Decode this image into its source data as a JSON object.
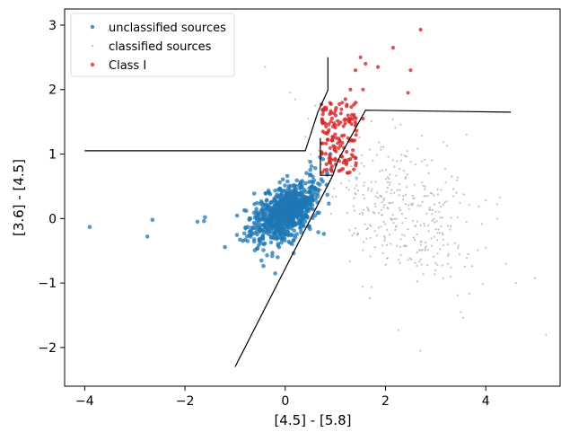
{
  "chart_data": {
    "type": "scatter",
    "xlabel": "[4.5] - [5.8]",
    "ylabel": "[3.6] - [4.5]",
    "xlim": [
      -4.4,
      5.5
    ],
    "ylim": [
      -2.6,
      3.25
    ],
    "x_ticks": [
      -4,
      -2,
      0,
      2,
      4
    ],
    "y_ticks": [
      -2,
      -1,
      0,
      1,
      2,
      3
    ],
    "x_tick_labels": [
      "−4",
      "−2",
      "0",
      "2",
      "4"
    ],
    "y_tick_labels": [
      "−2",
      "−1",
      "0",
      "1",
      "2",
      "3"
    ],
    "grid": false,
    "legend_position": "top-left",
    "legend": [
      {
        "label": "unclassified sources",
        "color": "#1f77b4"
      },
      {
        "label": "classified sources",
        "color": "#aaaaaa"
      },
      {
        "label": "Class I",
        "color": "#d62728"
      }
    ],
    "series": [
      {
        "name": "unclassified sources",
        "color": "#1f77b4",
        "x": [
          -3.9,
          -2.65,
          -2.75,
          -1.75,
          -1.6,
          -1.62,
          -0.2,
          -0.15,
          0.9,
          0.75,
          0.5,
          0.6,
          0.7
        ],
        "y": [
          -0.13,
          -0.02,
          -0.28,
          -0.05,
          0.02,
          -0.04,
          -0.85,
          -0.6,
          1.0,
          0.92,
          0.88,
          0.78,
          0.95
        ],
        "cluster": {
          "center_x": 0.0,
          "center_y": 0.08,
          "sd_x": 0.32,
          "sd_y": 0.2,
          "count": 900
        }
      },
      {
        "name": "classified sources",
        "color": "#aaaaaa",
        "x": [
          -0.4,
          0.1,
          0.2,
          0.6,
          3.0,
          3.3,
          3.5,
          4.4,
          4.6,
          5.2,
          2.7,
          4.0
        ],
        "y": [
          2.35,
          1.95,
          1.85,
          1.75,
          -0.8,
          -0.9,
          -1.45,
          -0.7,
          -1.0,
          -1.8,
          -2.05,
          -0.45
        ],
        "cluster": {
          "center_x": 2.2,
          "center_y": 0.2,
          "sd_x": 0.85,
          "sd_y": 0.55,
          "count": 380
        }
      },
      {
        "name": "Class I",
        "color": "#d62728",
        "x": [
          2.7,
          2.15,
          2.5,
          2.45,
          1.5,
          1.4,
          1.6,
          1.85,
          1.2,
          1.3,
          1.55,
          1.55
        ],
        "y": [
          2.93,
          2.65,
          2.3,
          1.95,
          2.5,
          2.3,
          2.4,
          2.35,
          1.85,
          2.0,
          1.55,
          2.0
        ],
        "cluster": {
          "center_x": 0.95,
          "center_y": 1.2,
          "sd_x": 0.22,
          "sd_y": 0.32,
          "count": 150
        }
      }
    ],
    "boundary_lines": [
      [
        [
          -4.0,
          1.05
        ],
        [
          0.4,
          1.05
        ],
        [
          0.65,
          1.65
        ],
        [
          0.85,
          1.99
        ],
        [
          0.85,
          2.5
        ]
      ],
      [
        [
          0.7,
          1.25
        ],
        [
          0.7,
          0.67
        ],
        [
          0.95,
          0.67
        ],
        [
          1.05,
          0.9
        ],
        [
          1.6,
          1.68
        ],
        [
          4.5,
          1.65
        ]
      ],
      [
        [
          -1.0,
          -2.3
        ],
        [
          0.95,
          0.67
        ]
      ]
    ]
  }
}
